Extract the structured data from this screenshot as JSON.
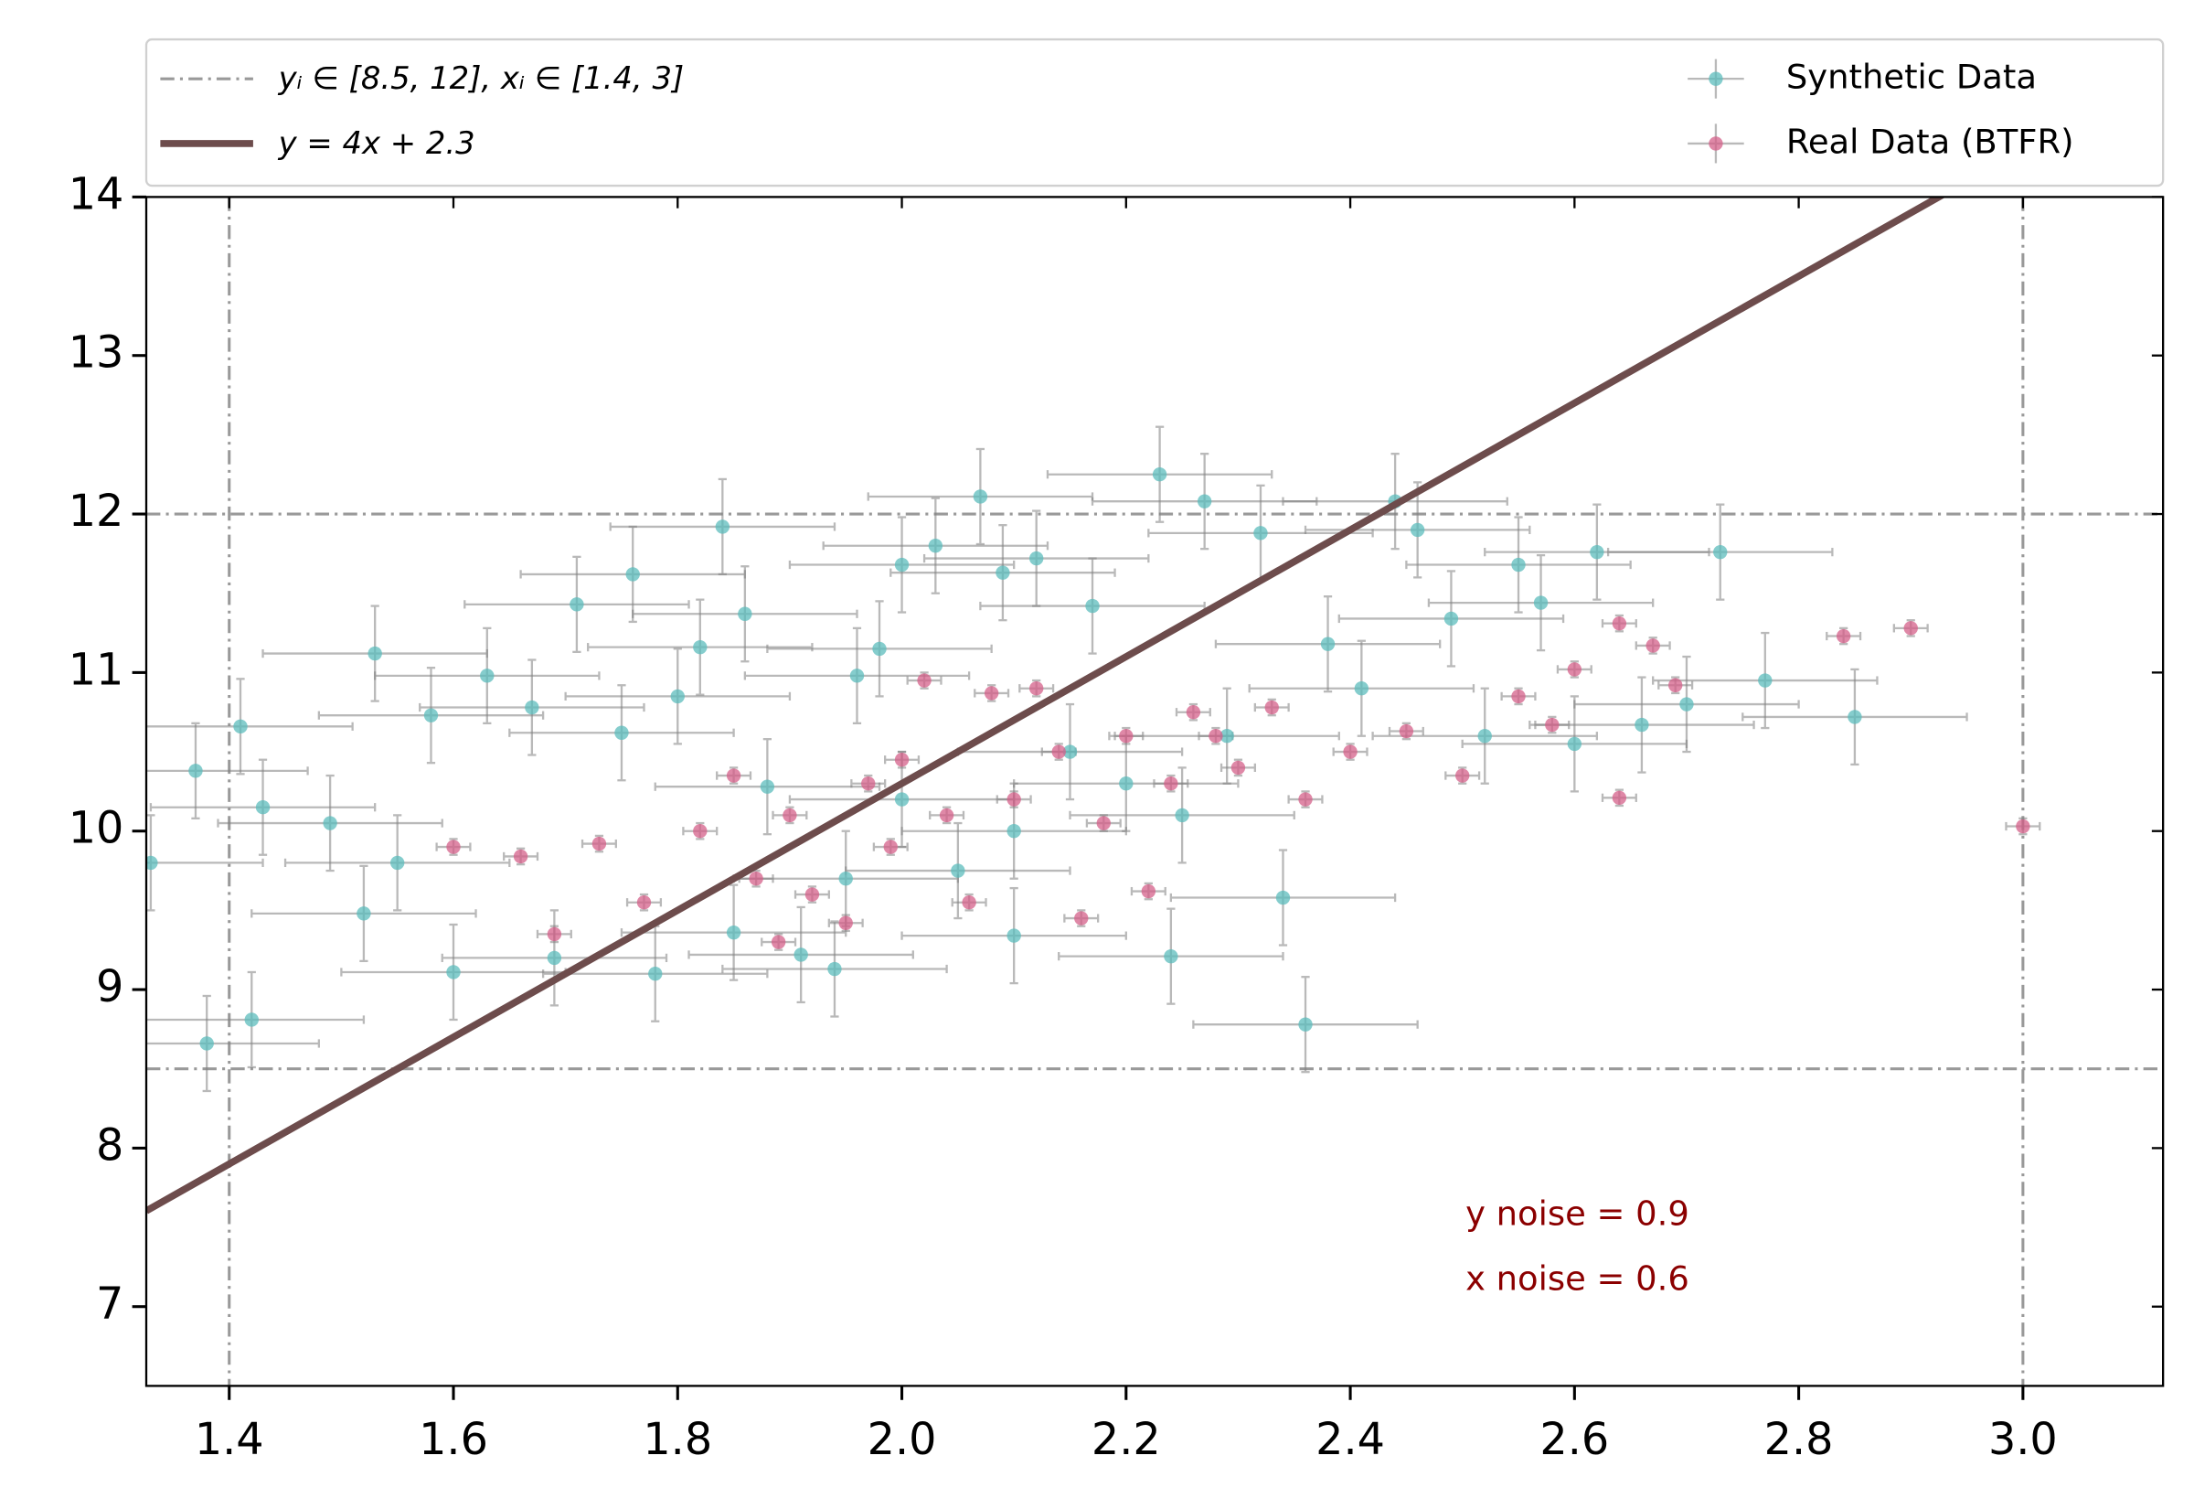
{
  "chart_data": {
    "type": "scatter",
    "xlim": [
      1.326,
      3.125
    ],
    "ylim": [
      6.5,
      14
    ],
    "xticks": [
      1.4,
      1.6,
      1.8,
      {
        "value": 2,
        "label": "2.0"
      },
      2.2,
      2.4,
      2.6,
      2.8,
      {
        "value": 3,
        "label": "3.0"
      }
    ],
    "yticks": [
      7,
      8,
      9,
      10,
      11,
      12,
      13,
      14
    ],
    "hlines": [
      8.5,
      12
    ],
    "vlines": [
      1.4,
      3
    ],
    "bounds_label": "yᵢ ∈ [8.5, 12],  xᵢ ∈ [1.4, 3]",
    "bounds_color": "#999999",
    "line": {
      "name": "y = 4x + 2.3",
      "slope": 4,
      "intercept": 2.3,
      "color": "#6d4c4c"
    },
    "annotations": [
      "y noise = 0.9",
      "x noise = 0.6"
    ],
    "annotation_color": "#8b0000",
    "series": [
      {
        "name": "Synthetic Data",
        "color": "#5cbcbc",
        "xerr": 0.1,
        "yerr": 0.3,
        "x": [
          1.33,
          1.37,
          1.38,
          1.41,
          1.42,
          1.43,
          1.49,
          1.52,
          1.53,
          1.55,
          1.58,
          1.6,
          1.63,
          1.67,
          1.69,
          1.71,
          1.75,
          1.76,
          1.78,
          1.8,
          1.82,
          1.84,
          1.85,
          1.86,
          1.88,
          1.91,
          1.94,
          1.96,
          1.98,
          2.0,
          2.03,
          2.05,
          2.07,
          2.09,
          2.1,
          2.12,
          2.15,
          2.17,
          2.2,
          2.23,
          2.24,
          2.27,
          2.29,
          2.32,
          2.34,
          2.36,
          2.38,
          2.41,
          2.44,
          2.46,
          2.49,
          2.52,
          2.55,
          2.57,
          2.6,
          2.62,
          2.66,
          2.7,
          2.73,
          2.77,
          2.85,
          2.0,
          2.1,
          2.25,
          1.95
        ],
        "y": [
          9.8,
          10.38,
          8.66,
          10.66,
          8.81,
          10.15,
          10.05,
          9.48,
          11.12,
          9.8,
          10.73,
          9.11,
          10.98,
          10.78,
          9.2,
          11.43,
          10.62,
          11.62,
          9.1,
          10.85,
          11.16,
          11.92,
          9.36,
          11.37,
          10.28,
          9.22,
          9.13,
          10.98,
          11.15,
          11.68,
          11.8,
          9.75,
          12.11,
          11.63,
          9.34,
          11.72,
          10.5,
          11.42,
          10.3,
          12.25,
          9.21,
          12.08,
          10.6,
          11.88,
          9.58,
          8.78,
          11.18,
          10.9,
          12.08,
          11.9,
          11.34,
          10.6,
          11.68,
          11.44,
          10.55,
          11.76,
          10.67,
          10.8,
          11.76,
          10.95,
          10.72,
          10.2,
          10.0,
          10.1,
          9.7
        ]
      },
      {
        "name": "Real Data (BTFR)",
        "color": "#d4608a",
        "xerr": 0.015,
        "yerr": 0.05,
        "x": [
          1.6,
          1.66,
          1.69,
          1.73,
          1.77,
          1.82,
          1.85,
          1.87,
          1.89,
          1.9,
          1.92,
          1.95,
          1.97,
          1.99,
          2.0,
          2.02,
          2.04,
          2.06,
          2.08,
          2.1,
          2.12,
          2.14,
          2.16,
          2.18,
          2.2,
          2.22,
          2.24,
          2.26,
          2.28,
          2.3,
          2.33,
          2.36,
          2.4,
          2.45,
          2.5,
          2.55,
          2.58,
          2.6,
          2.64,
          2.64,
          2.67,
          2.69,
          2.84,
          2.9,
          3.0
        ],
        "y": [
          9.9,
          9.84,
          9.35,
          9.92,
          9.55,
          10.0,
          10.35,
          9.7,
          9.3,
          10.1,
          9.6,
          9.42,
          10.3,
          9.9,
          10.45,
          10.95,
          10.1,
          9.55,
          10.87,
          10.2,
          10.9,
          10.5,
          9.45,
          10.05,
          10.6,
          9.62,
          10.3,
          10.75,
          10.6,
          10.4,
          10.78,
          10.2,
          10.5,
          10.63,
          10.35,
          10.85,
          10.67,
          11.02,
          11.31,
          10.21,
          11.17,
          10.92,
          11.23,
          11.28,
          10.03
        ]
      }
    ]
  }
}
